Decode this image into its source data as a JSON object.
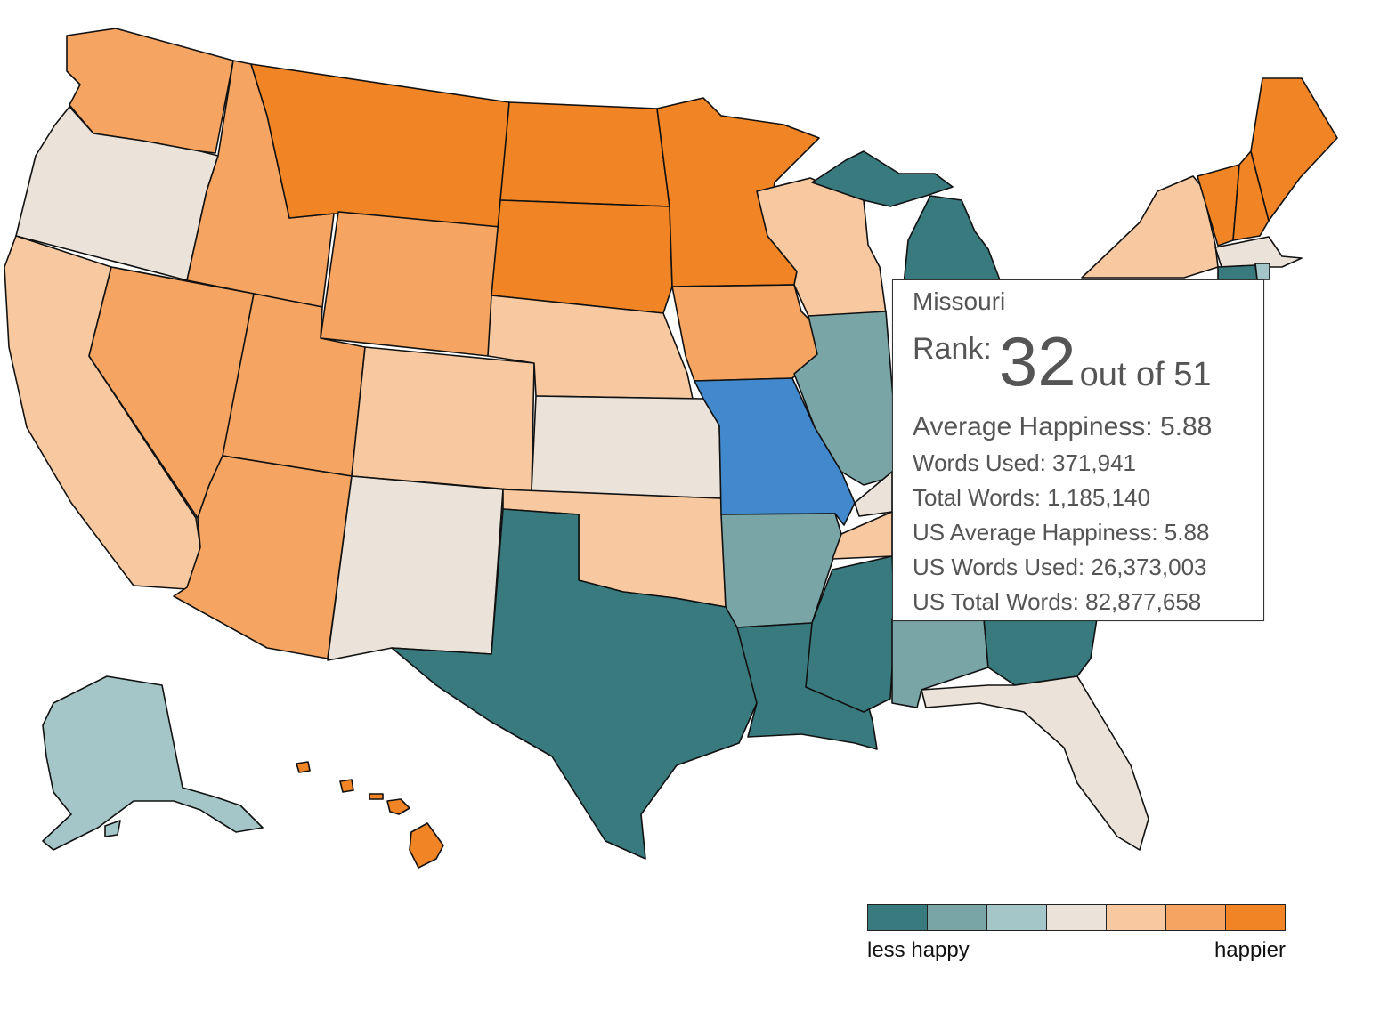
{
  "colors": {
    "c1": "#387a7e",
    "c2": "#79a5a7",
    "c3": "#a5c6c8",
    "c4": "#ebe3d9",
    "c5": "#f8c9a0",
    "c6": "#f5a462",
    "c7": "#f18425",
    "selected": "#4189cc"
  },
  "tooltip": {
    "state": "Missouri",
    "rank_label": "Rank:",
    "rank": "32",
    "rank_of": "out of 51",
    "avg_happiness": "Average Happiness: 5.88",
    "words_used": "Words Used: 371,941",
    "total_words": "Total Words: 1,185,140",
    "us_avg_happiness": "US Average Happiness: 5.88",
    "us_words_used": "US Words Used: 26,373,003",
    "us_total_words": "US Total Words: 82,877,658"
  },
  "legend": {
    "low_label": "less happy",
    "high_label": "happier",
    "bins": [
      "c1",
      "c2",
      "c3",
      "c4",
      "c5",
      "c6",
      "c7"
    ]
  },
  "states": [
    {
      "name": "WA",
      "bin": "c6"
    },
    {
      "name": "OR",
      "bin": "c4"
    },
    {
      "name": "CA",
      "bin": "c5"
    },
    {
      "name": "ID",
      "bin": "c6"
    },
    {
      "name": "NV",
      "bin": "c6"
    },
    {
      "name": "MT",
      "bin": "c7"
    },
    {
      "name": "WY",
      "bin": "c6"
    },
    {
      "name": "UT",
      "bin": "c6"
    },
    {
      "name": "AZ",
      "bin": "c6"
    },
    {
      "name": "CO",
      "bin": "c5"
    },
    {
      "name": "NM",
      "bin": "c4"
    },
    {
      "name": "ND",
      "bin": "c7"
    },
    {
      "name": "SD",
      "bin": "c7"
    },
    {
      "name": "NE",
      "bin": "c5"
    },
    {
      "name": "KS",
      "bin": "c4"
    },
    {
      "name": "OK",
      "bin": "c5"
    },
    {
      "name": "TX",
      "bin": "c1"
    },
    {
      "name": "MN",
      "bin": "c7"
    },
    {
      "name": "IA",
      "bin": "c6"
    },
    {
      "name": "MO",
      "bin": "selected"
    },
    {
      "name": "AR",
      "bin": "c2"
    },
    {
      "name": "LA",
      "bin": "c1"
    },
    {
      "name": "WI",
      "bin": "c5"
    },
    {
      "name": "IL",
      "bin": "c2"
    },
    {
      "name": "MI",
      "bin": "c1"
    },
    {
      "name": "MS",
      "bin": "c1"
    },
    {
      "name": "AL",
      "bin": "c2"
    },
    {
      "name": "GA",
      "bin": "c1"
    },
    {
      "name": "FL",
      "bin": "c4"
    },
    {
      "name": "TN",
      "bin": "c5"
    },
    {
      "name": "KY",
      "bin": "c4"
    },
    {
      "name": "NY",
      "bin": "c5"
    },
    {
      "name": "VT",
      "bin": "c7"
    },
    {
      "name": "NH",
      "bin": "c7"
    },
    {
      "name": "ME",
      "bin": "c7"
    },
    {
      "name": "MA",
      "bin": "c4"
    },
    {
      "name": "CT",
      "bin": "c1"
    },
    {
      "name": "RI",
      "bin": "c3"
    },
    {
      "name": "AK",
      "bin": "c3"
    },
    {
      "name": "HI",
      "bin": "c7"
    }
  ]
}
